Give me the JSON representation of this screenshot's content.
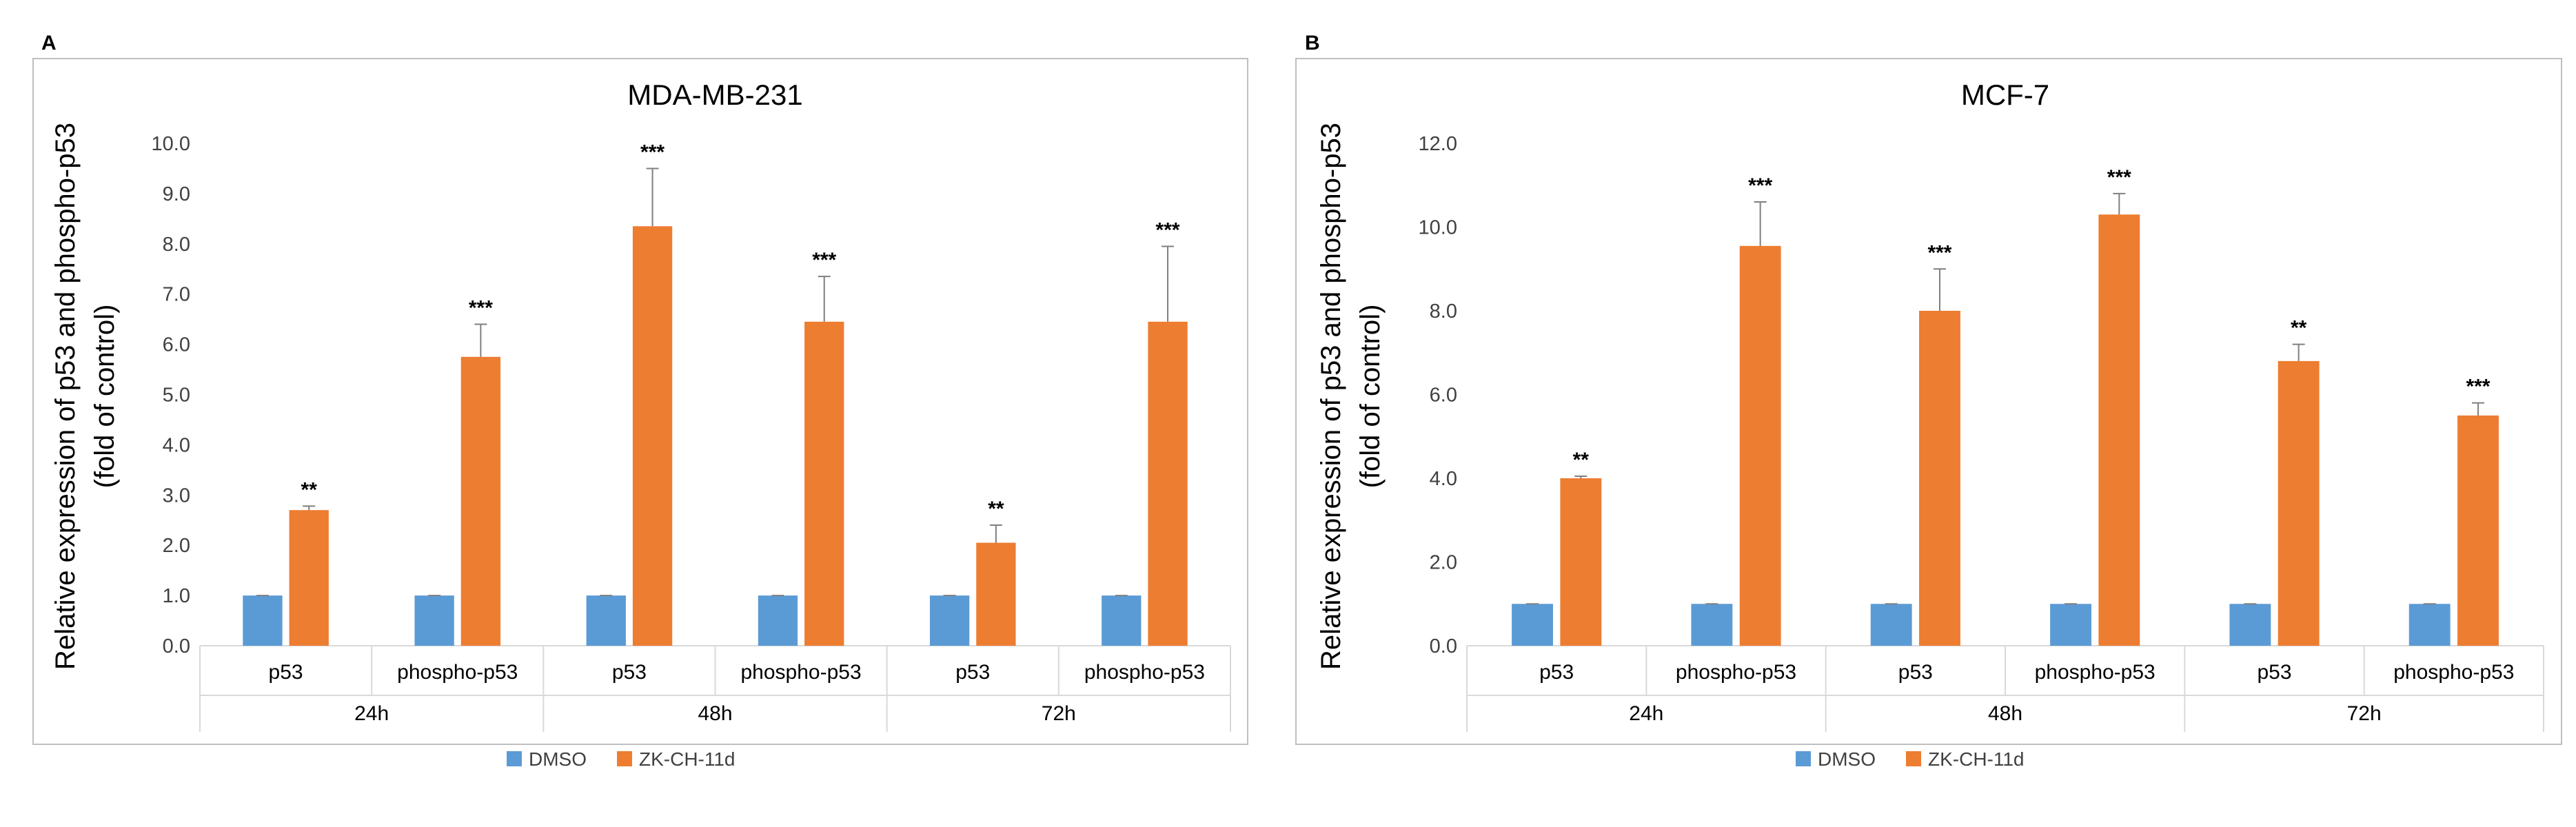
{
  "colors": {
    "dmso": "#5B9BD5",
    "zk": "#ED7D31",
    "axis": "#D9D9D9",
    "text": "#000000",
    "tick_text": "#404040",
    "error": "#7F7F7F",
    "frame": "#BFBFBF"
  },
  "legend": {
    "dmso": "DMSO",
    "zk": "ZK-CH-11d"
  },
  "chart_data": [
    {
      "panel_label": "A",
      "type": "bar",
      "title": "MDA-MB-231",
      "ylabel_line1": "Relative expression of p53 and phospho-p53",
      "ylabel_line2": "(fold of control)",
      "ylim": [
        0,
        10
      ],
      "ytick_step": 1,
      "yticks": [
        "0.0",
        "1.0",
        "2.0",
        "3.0",
        "4.0",
        "5.0",
        "6.0",
        "7.0",
        "8.0",
        "9.0",
        "10.0"
      ],
      "groups": [
        "24h",
        "48h",
        "72h"
      ],
      "categories": [
        "p53",
        "phospho-p53",
        "p53",
        "phospho-p53",
        "p53",
        "phospho-p53"
      ],
      "series": [
        {
          "name": "DMSO",
          "values": [
            1.0,
            1.0,
            1.0,
            1.0,
            1.0,
            1.0
          ],
          "errors": [
            0,
            0,
            0,
            0,
            0,
            0
          ]
        },
        {
          "name": "ZK-CH-11d",
          "values": [
            2.7,
            5.75,
            8.35,
            6.45,
            2.05,
            6.45
          ],
          "errors": [
            0.08,
            0.65,
            1.15,
            0.9,
            0.35,
            1.5
          ]
        }
      ],
      "significance": [
        "**",
        "***",
        "***",
        "***",
        "**",
        "***"
      ]
    },
    {
      "panel_label": "B",
      "type": "bar",
      "title": "MCF-7",
      "ylabel_line1": "Relative expression of p53 and phospho-p53",
      "ylabel_line2": "(fold of control)",
      "ylim": [
        0,
        12
      ],
      "ytick_step": 2,
      "yticks": [
        "0.0",
        "2.0",
        "4.0",
        "6.0",
        "8.0",
        "10.0",
        "12.0"
      ],
      "groups": [
        "24h",
        "48h",
        "72h"
      ],
      "categories": [
        "p53",
        "phospho-p53",
        "p53",
        "phospho-p53",
        "p53",
        "phospho-p53"
      ],
      "series": [
        {
          "name": "DMSO",
          "values": [
            1.0,
            1.0,
            1.0,
            1.0,
            1.0,
            1.0
          ],
          "errors": [
            0,
            0,
            0,
            0,
            0,
            0
          ]
        },
        {
          "name": "ZK-CH-11d",
          "values": [
            4.0,
            9.55,
            8.0,
            10.3,
            6.8,
            5.5
          ],
          "errors": [
            0.05,
            1.05,
            1.0,
            0.5,
            0.4,
            0.3
          ]
        }
      ],
      "significance": [
        "**",
        "***",
        "***",
        "***",
        "**",
        "***"
      ]
    }
  ]
}
